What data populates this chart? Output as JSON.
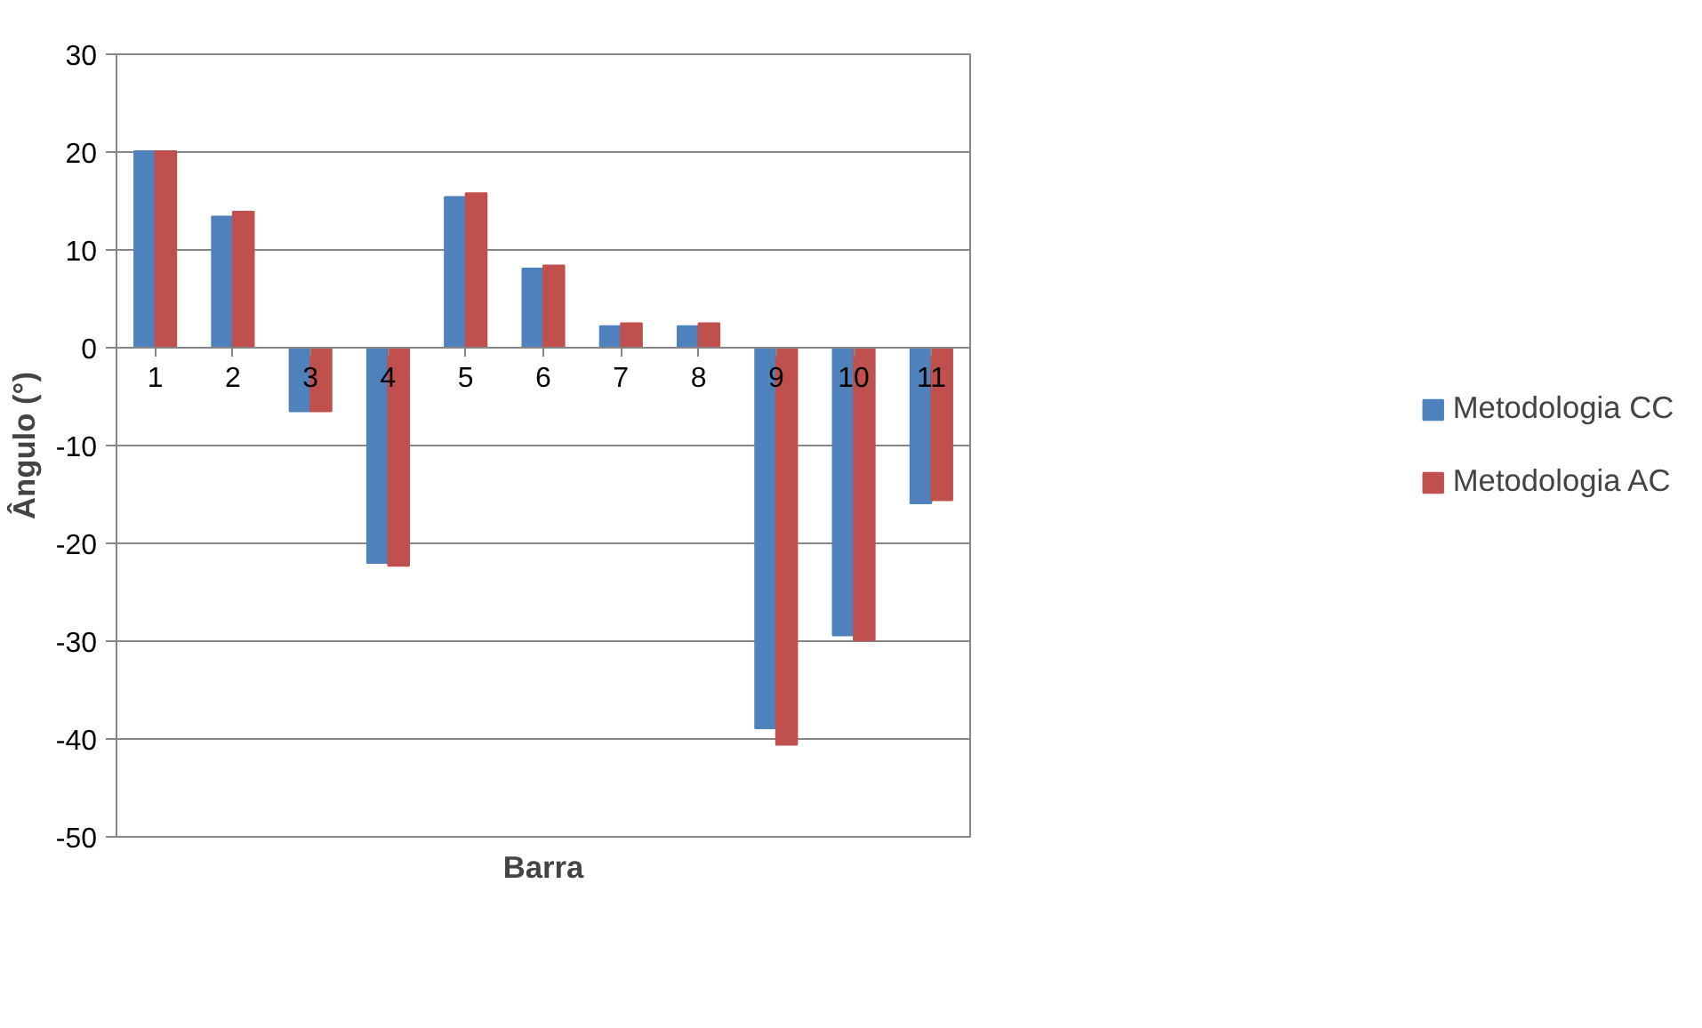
{
  "chart_data": {
    "type": "bar",
    "xlabel": "Barra",
    "ylabel": "Ângulo (°)",
    "categories": [
      "1",
      "2",
      "3",
      "4",
      "5",
      "6",
      "7",
      "8",
      "9",
      "10",
      "11"
    ],
    "series": [
      {
        "name": "Metodologia CC",
        "color": "#4f81bd",
        "values": [
          20.1,
          13.4,
          -6.5,
          -22.0,
          15.4,
          8.1,
          2.2,
          2.2,
          -38.9,
          -29.4,
          -15.9
        ]
      },
      {
        "name": "Metodologia AC",
        "color": "#c0504d",
        "values": [
          20.1,
          13.9,
          -6.5,
          -22.3,
          15.8,
          8.4,
          2.5,
          2.5,
          -40.6,
          -29.9,
          -15.6
        ]
      }
    ],
    "ylim": [
      -50,
      30
    ],
    "yticks": [
      -50,
      -40,
      -30,
      -20,
      -10,
      0,
      10,
      20,
      30
    ],
    "grid": "y",
    "legend": "right"
  }
}
